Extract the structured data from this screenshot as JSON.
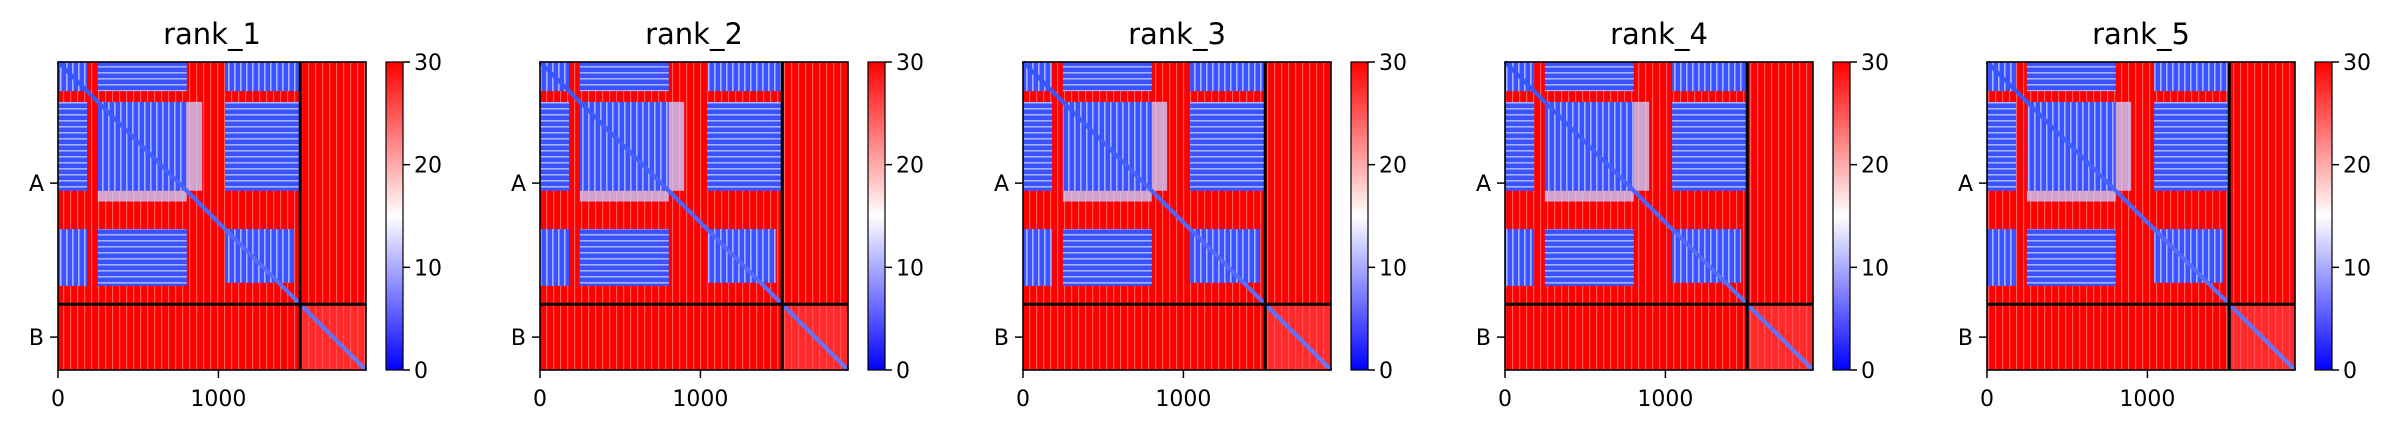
{
  "figure": {
    "colormap": "bwr",
    "colors": {
      "low": "#0000ff",
      "mid": "#ffffff",
      "high": "#ff0000",
      "frame": "#000000"
    }
  },
  "chart_data": [
    {
      "type": "heatmap",
      "title": "rank_1",
      "xlabel": "",
      "ylabel": "",
      "xlim": [
        0,
        1920
      ],
      "xticks": [
        0,
        1000
      ],
      "ytick_labels": [
        "A",
        "B"
      ],
      "chain_boundary": 1510,
      "chain_ranges": {
        "A": [
          0,
          1510
        ],
        "B": [
          1510,
          1920
        ]
      },
      "colorbar": {
        "min": 0,
        "max": 30,
        "ticks": [
          0,
          10,
          20,
          30
        ]
      }
    },
    {
      "type": "heatmap",
      "title": "rank_2",
      "xlabel": "",
      "ylabel": "",
      "xlim": [
        0,
        1920
      ],
      "xticks": [
        0,
        1000
      ],
      "ytick_labels": [
        "A",
        "B"
      ],
      "chain_boundary": 1510,
      "chain_ranges": {
        "A": [
          0,
          1510
        ],
        "B": [
          1510,
          1920
        ]
      },
      "colorbar": {
        "min": 0,
        "max": 30,
        "ticks": [
          0,
          10,
          20,
          30
        ]
      }
    },
    {
      "type": "heatmap",
      "title": "rank_3",
      "xlabel": "",
      "ylabel": "",
      "xlim": [
        0,
        1920
      ],
      "xticks": [
        0,
        1000
      ],
      "ytick_labels": [
        "A",
        "B"
      ],
      "chain_boundary": 1510,
      "chain_ranges": {
        "A": [
          0,
          1510
        ],
        "B": [
          1510,
          1920
        ]
      },
      "colorbar": {
        "min": 0,
        "max": 30,
        "ticks": [
          0,
          10,
          20,
          30
        ]
      }
    },
    {
      "type": "heatmap",
      "title": "rank_4",
      "xlabel": "",
      "ylabel": "",
      "xlim": [
        0,
        1920
      ],
      "xticks": [
        0,
        1000
      ],
      "ytick_labels": [
        "A",
        "B"
      ],
      "chain_boundary": 1510,
      "chain_ranges": {
        "A": [
          0,
          1510
        ],
        "B": [
          1510,
          1920
        ]
      },
      "colorbar": {
        "min": 0,
        "max": 30,
        "ticks": [
          0,
          10,
          20,
          30
        ]
      }
    },
    {
      "type": "heatmap",
      "title": "rank_5",
      "xlabel": "",
      "ylabel": "",
      "xlim": [
        0,
        1920
      ],
      "xticks": [
        0,
        1000
      ],
      "ytick_labels": [
        "A",
        "B"
      ],
      "chain_boundary": 1510,
      "chain_ranges": {
        "A": [
          0,
          1510
        ],
        "B": [
          1510,
          1920
        ]
      },
      "colorbar": {
        "min": 0,
        "max": 30,
        "ticks": [
          0,
          10,
          20,
          30
        ]
      }
    }
  ]
}
